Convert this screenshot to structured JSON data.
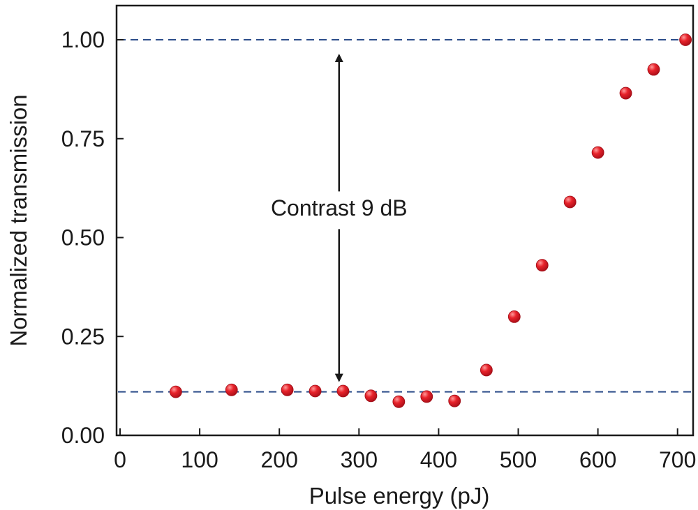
{
  "chart_data": {
    "type": "scatter",
    "title": "",
    "xlabel": "Pulse energy (pJ)",
    "ylabel": "Normalized transmission",
    "xlim": [
      0,
      720
    ],
    "ylim": [
      0,
      1.05
    ],
    "x_ticks": [
      0,
      100,
      200,
      300,
      400,
      500,
      600,
      700
    ],
    "x_tick_labels": [
      "0",
      "100",
      "200",
      "300",
      "400",
      "500",
      "600",
      "700"
    ],
    "y_ticks": [
      0,
      0.25,
      0.5,
      0.75,
      1.0
    ],
    "y_tick_labels": [
      "0.00",
      "0.25",
      "0.50",
      "0.75",
      "1.00"
    ],
    "grid": false,
    "series": [
      {
        "name": "Normalized transmission",
        "color": "#e8232b",
        "x": [
          70,
          140,
          210,
          245,
          280,
          315,
          350,
          385,
          420,
          460,
          495,
          530,
          565,
          600,
          635,
          670,
          710
        ],
        "y": [
          0.11,
          0.115,
          0.115,
          0.112,
          0.112,
          0.1,
          0.085,
          0.098,
          0.087,
          0.165,
          0.3,
          0.43,
          0.59,
          0.715,
          0.865,
          0.925,
          1.0
        ]
      }
    ],
    "reference_lines": [
      {
        "axis": "y",
        "value": 1.0,
        "style": "dashed",
        "color": "#2c4d8a"
      },
      {
        "axis": "y",
        "value": 0.11,
        "style": "dashed",
        "color": "#2c4d8a"
      }
    ],
    "annotations": [
      {
        "text": "Contrast 9 dB",
        "type": "double-arrow",
        "x": 275,
        "y_from": 0.11,
        "y_to": 1.0
      }
    ]
  }
}
